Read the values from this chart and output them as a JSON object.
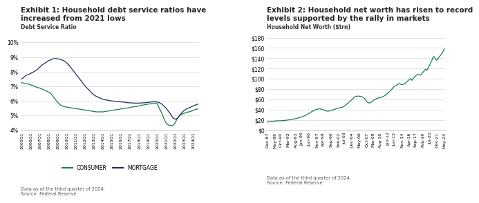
{
  "chart1": {
    "title_line1": "Exhibit 1: Household debt service ratios have",
    "title_line2": "increased from 2021 lows",
    "ylabel": "Debt Service Ratio",
    "footnote": "Data as of the third quarter of 2024.\nSource: Federal Reserve",
    "ylim": [
      4,
      10.5
    ],
    "yticks": [
      4,
      5,
      6,
      7,
      8,
      9,
      10
    ],
    "ytick_labels": [
      "4%",
      "5%",
      "6%",
      "7%",
      "8%",
      "9%",
      "10%"
    ],
    "consumer_color": "#1a7a4a",
    "mortgage_color": "#1a2e5a",
    "consumer": [
      7.25,
      7.22,
      7.18,
      7.15,
      7.1,
      7.05,
      6.98,
      6.92,
      6.88,
      6.82,
      6.75,
      6.68,
      6.6,
      6.5,
      6.3,
      6.1,
      5.9,
      5.75,
      5.65,
      5.6,
      5.58,
      5.55,
      5.52,
      5.5,
      5.48,
      5.45,
      5.43,
      5.4,
      5.38,
      5.35,
      5.33,
      5.3,
      5.28,
      5.25,
      5.25,
      5.25,
      5.25,
      5.28,
      5.3,
      5.32,
      5.35,
      5.38,
      5.4,
      5.42,
      5.45,
      5.48,
      5.5,
      5.52,
      5.55,
      5.58,
      5.6,
      5.62,
      5.65,
      5.7,
      5.72,
      5.75,
      5.78,
      5.8,
      5.82,
      5.85,
      5.82,
      5.5,
      5.2,
      4.8,
      4.5,
      4.35,
      4.32,
      4.3,
      4.5,
      4.8,
      5.0,
      5.1,
      5.15,
      5.2,
      5.25,
      5.28,
      5.35,
      5.42,
      5.45
    ],
    "mortgage": [
      7.5,
      7.62,
      7.75,
      7.8,
      7.88,
      7.95,
      8.05,
      8.15,
      8.3,
      8.45,
      8.55,
      8.65,
      8.75,
      8.82,
      8.88,
      8.9,
      8.88,
      8.85,
      8.8,
      8.72,
      8.6,
      8.45,
      8.25,
      8.05,
      7.85,
      7.65,
      7.45,
      7.25,
      7.05,
      6.88,
      6.72,
      6.55,
      6.42,
      6.32,
      6.25,
      6.18,
      6.12,
      6.08,
      6.05,
      6.02,
      6.0,
      5.98,
      5.96,
      5.95,
      5.93,
      5.92,
      5.9,
      5.88,
      5.87,
      5.86,
      5.85,
      5.85,
      5.85,
      5.86,
      5.87,
      5.88,
      5.9,
      5.92,
      5.93,
      5.95,
      5.92,
      5.88,
      5.8,
      5.65,
      5.5,
      5.3,
      5.1,
      4.85,
      4.75,
      4.8,
      5.0,
      5.2,
      5.35,
      5.45,
      5.52,
      5.58,
      5.65,
      5.72,
      5.78
    ],
    "x_tick_start_year": 2005,
    "n_quarters": 79
  },
  "chart2": {
    "title_line1": "Exhibit 2: Household net worth has risen to record",
    "title_line2": "levels supported by the rally in markets",
    "ylabel": "Household Net Worth ($trn)",
    "footnote": "Data as of the third quarter of 2024.\nSource: Federal Reserve",
    "line_color": "#1a7a4a",
    "ylim": [
      0,
      185
    ],
    "yticks": [
      0,
      20,
      40,
      60,
      80,
      100,
      120,
      140,
      160,
      180
    ],
    "ytick_labels": [
      "$0",
      "$20",
      "$40",
      "$60",
      "$80",
      "$100",
      "$120",
      "$140",
      "$160",
      "$180"
    ],
    "x_labels": [
      "Dec-87",
      "May-89",
      "Oct-90",
      "Mar-92",
      "Aug-93",
      "Jan-95",
      "Jun-96",
      "Nov-97",
      "Apr-99",
      "Sep-00",
      "Feb-02",
      "Jul-03",
      "Dec-04",
      "May-06",
      "Oct-07",
      "Mar-09",
      "Aug-10",
      "Jan-12",
      "Jun-13",
      "Nov-14",
      "Apr-16",
      "Sep-17",
      "Feb-19",
      "Jul-20",
      "Dec-21",
      "May-23"
    ],
    "net_worth": [
      15.5,
      16.0,
      16.5,
      16.8,
      17.0,
      17.3,
      17.6,
      17.9,
      18.2,
      18.0,
      18.1,
      18.2,
      18.4,
      18.6,
      18.9,
      19.2,
      19.5,
      19.8,
      20.2,
      20.5,
      21.0,
      21.5,
      22.0,
      22.5,
      23.0,
      23.8,
      24.5,
      25.2,
      26.0,
      27.0,
      28.0,
      29.0,
      30.5,
      32.0,
      33.5,
      35.0,
      36.5,
      37.5,
      38.8,
      40.0,
      40.5,
      41.5,
      41.5,
      41.0,
      40.5,
      39.5,
      38.5,
      37.5,
      37.0,
      37.0,
      37.5,
      38.0,
      38.8,
      39.5,
      40.5,
      41.5,
      42.5,
      43.0,
      43.5,
      44.0,
      44.5,
      45.5,
      47.0,
      49.0,
      51.0,
      53.0,
      55.5,
      57.5,
      59.5,
      62.0,
      64.5,
      65.5,
      66.0,
      66.5,
      66.0,
      65.5,
      65.0,
      63.5,
      61.5,
      58.5,
      55.0,
      53.5,
      53.0,
      54.0,
      56.0,
      57.5,
      59.0,
      60.5,
      62.0,
      62.5,
      63.0,
      63.5,
      64.5,
      65.5,
      67.0,
      68.5,
      70.5,
      73.0,
      75.0,
      77.5,
      80.0,
      83.0,
      85.0,
      86.5,
      88.0,
      89.5,
      91.0,
      89.5,
      88.5,
      89.0,
      90.5,
      92.0,
      94.0,
      96.5,
      99.0,
      100.5,
      97.0,
      100.0,
      103.5,
      106.0,
      107.5,
      108.5,
      108.0,
      107.0,
      110.0,
      113.0,
      116.0,
      119.0,
      116.5,
      121.0,
      126.0,
      131.0,
      136.0,
      142.5,
      143.0,
      138.0,
      136.0,
      140.0,
      143.0,
      146.0,
      149.0,
      153.5,
      158.5
    ]
  }
}
